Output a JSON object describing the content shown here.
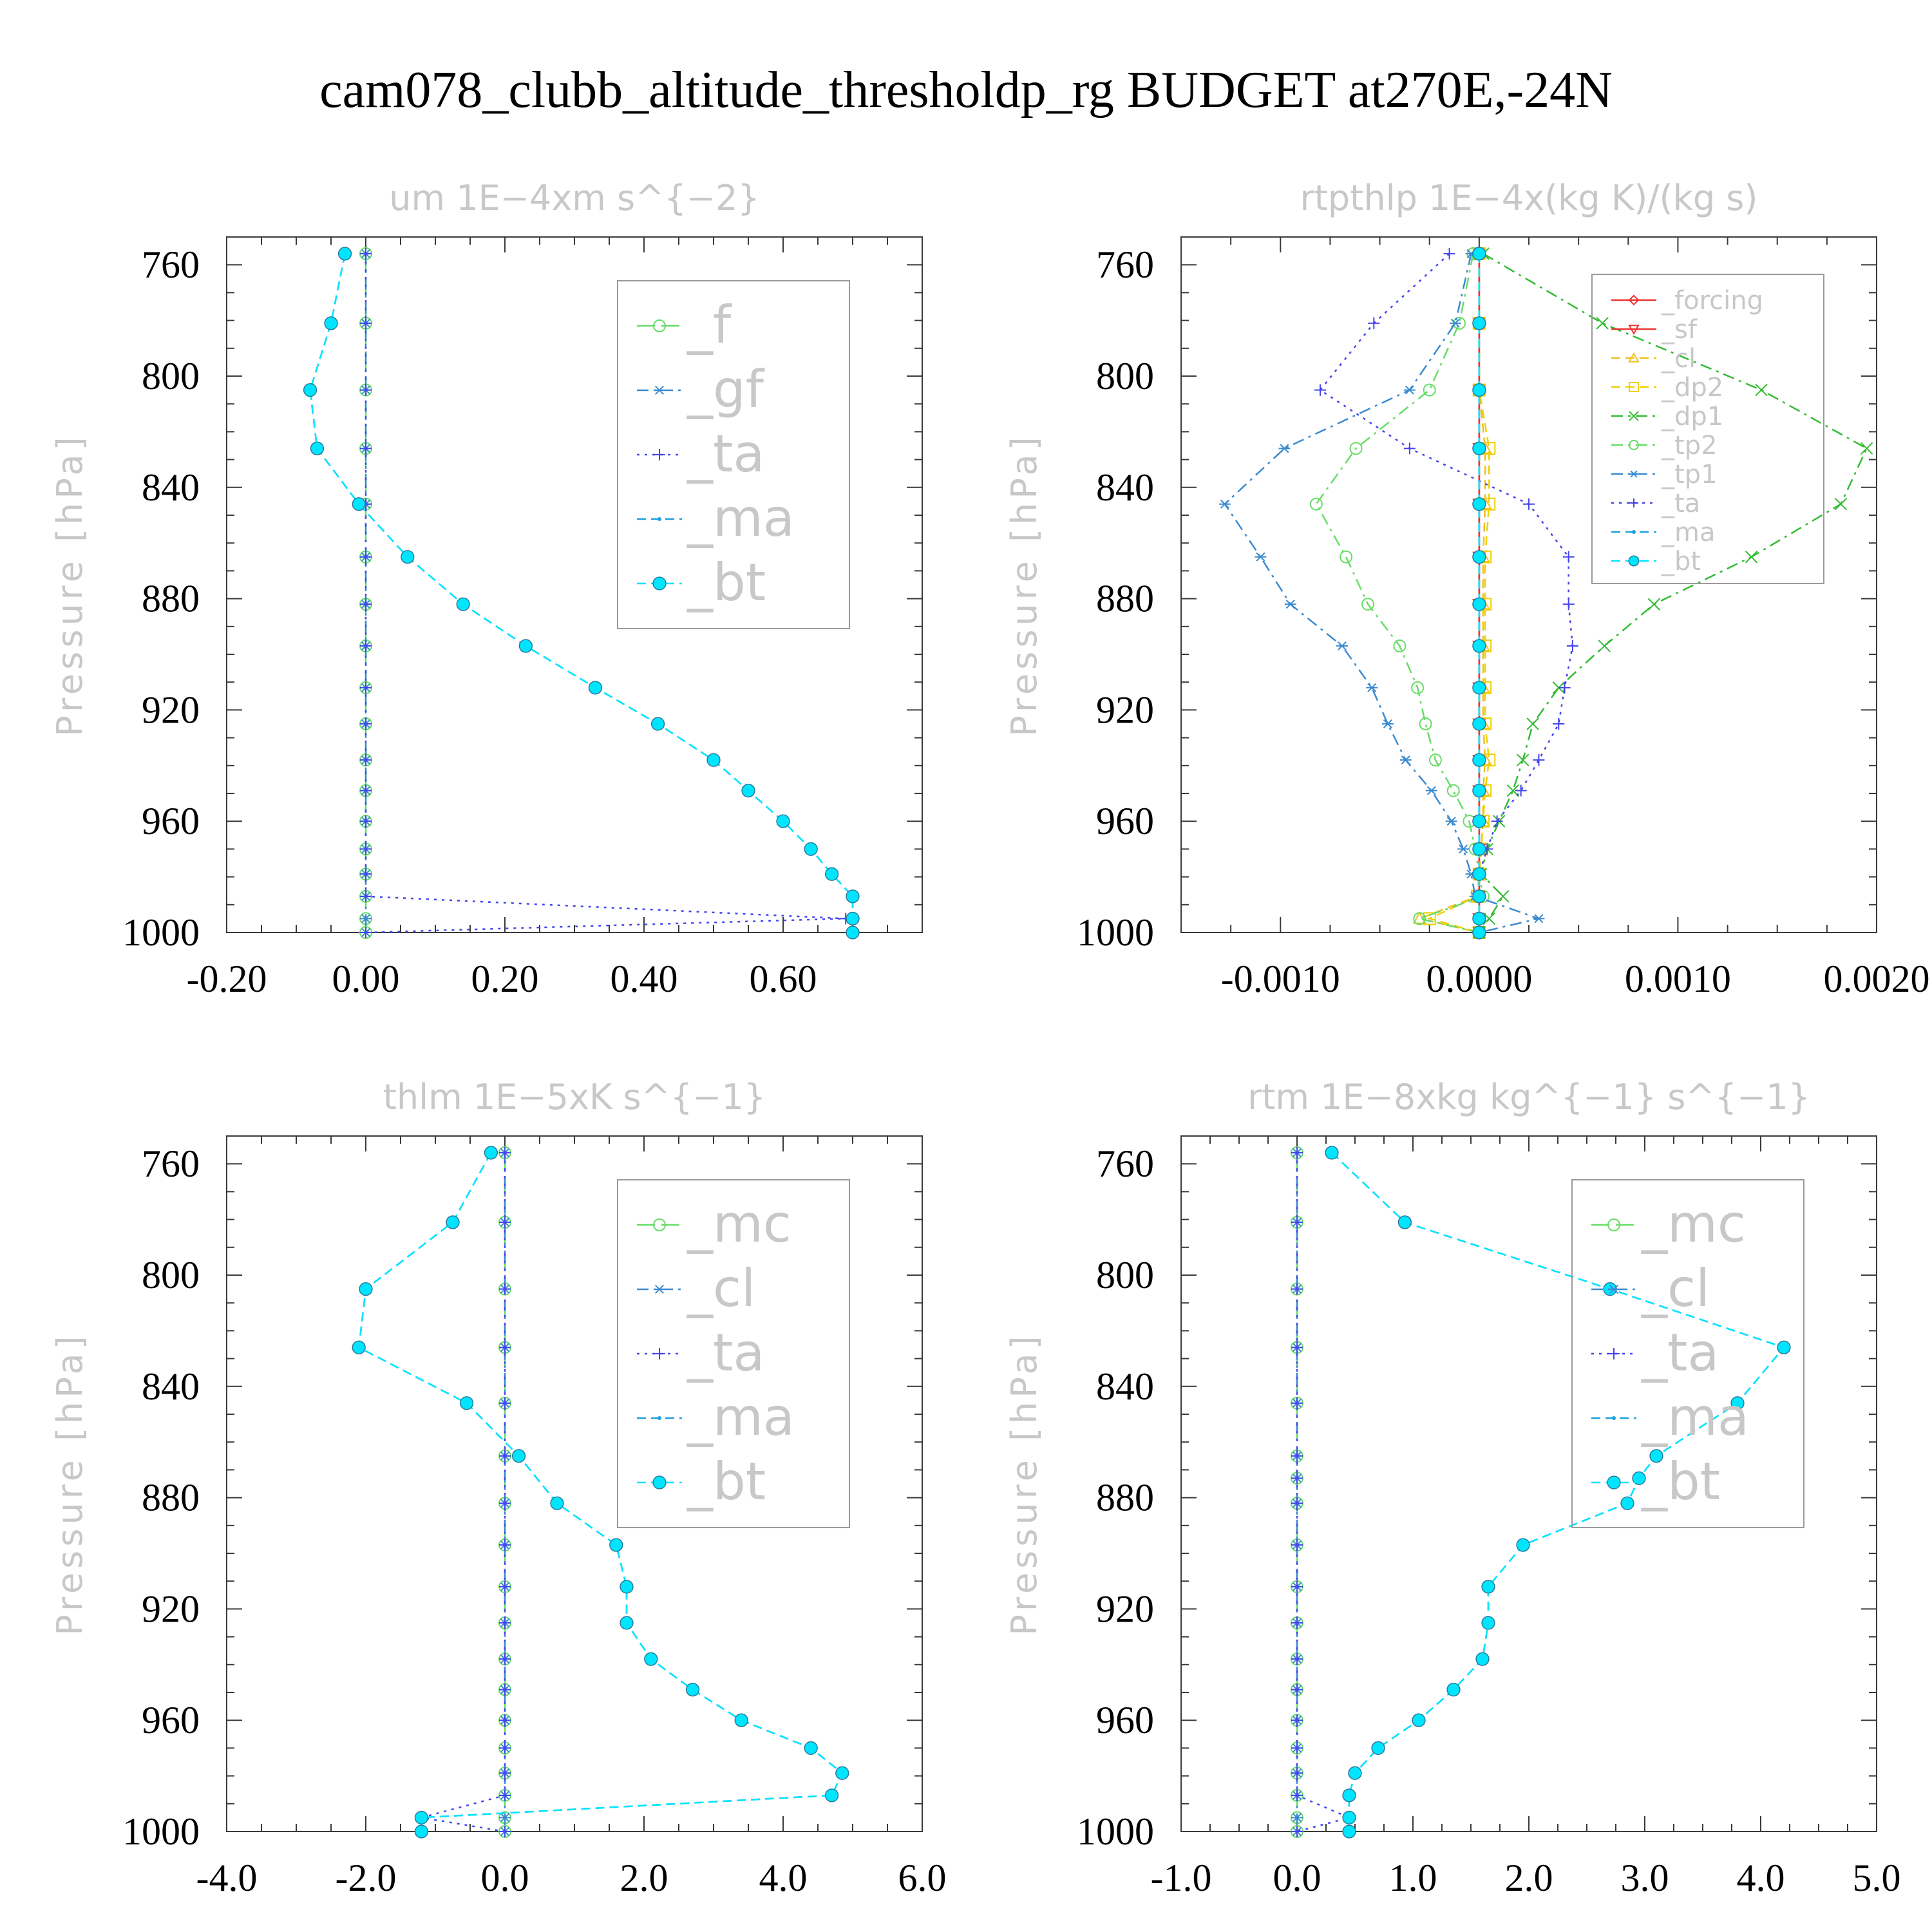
{
  "title": "cam078_clubb_altitude_thresholdp_rg  BUDGET at270E,-24N",
  "colors": {
    "f": "#66dd66",
    "gf": "#3a8ad0",
    "ta": "#4444ee",
    "ma": "#1aa0dd",
    "bt": "#00e5ff",
    "mc": "#66dd66",
    "cl": "#3a8ad0",
    "forcing": "#ee3333",
    "sf": "#ee3333",
    "cl_rt": "#f0c020",
    "dp2": "#f0d000",
    "dp1": "#33bb33",
    "tp2": "#66dd66",
    "tp1": "#3a8ad0",
    "ta_rt": "#4444ee",
    "ma_rt": "#1aa0dd",
    "bt_rt": "#00e5ff"
  },
  "chart_data": [
    {
      "type": "line",
      "title": "um   1E−4xm s^{−2}",
      "ylabel": "Pressure [hPa]",
      "xlim": [
        -0.2,
        0.8
      ],
      "ylim": [
        1000,
        750
      ],
      "xticks": [
        -0.2,
        0.0,
        0.2,
        0.4,
        0.6
      ],
      "xtick_labels": [
        "-0.20",
        "0.00",
        "0.20",
        "0.40",
        "0.60"
      ],
      "yticks": [
        760,
        800,
        840,
        880,
        920,
        960,
        1000
      ],
      "ytick_labels": [
        "760",
        "800",
        "840",
        "880",
        "920",
        "960",
        "1000"
      ],
      "legend_size": "big",
      "legend_pos": "top-right",
      "y": [
        756,
        781,
        805,
        826,
        846,
        865,
        882,
        897,
        912,
        925,
        938,
        949,
        960,
        970,
        979,
        987,
        995,
        1000
      ],
      "series": [
        {
          "name": "_f",
          "color_key": "f",
          "dash": "long",
          "marker": "circle",
          "values": [
            0,
            0,
            0,
            0,
            0,
            0,
            0,
            0,
            0,
            0,
            0,
            0,
            0,
            0,
            0,
            0,
            0,
            0
          ]
        },
        {
          "name": "_gf",
          "color_key": "gf",
          "dash": "dashdot",
          "marker": "star",
          "values": [
            0,
            0,
            0,
            0,
            0,
            0,
            0,
            0,
            0,
            0,
            0,
            0,
            0,
            0,
            0,
            0,
            0,
            0
          ]
        },
        {
          "name": "_ta",
          "color_key": "ta",
          "dash": "dot",
          "marker": "plus",
          "values": [
            0,
            0,
            0,
            0,
            0,
            0,
            0,
            0,
            0,
            0,
            0,
            0,
            0,
            0,
            0,
            0,
            0.69,
            0.0
          ]
        },
        {
          "name": "_ma",
          "color_key": "ma",
          "dash": "dash",
          "marker": "dot",
          "values": [
            -0.03,
            -0.05,
            -0.08,
            -0.07,
            -0.01,
            0.06,
            0.14,
            0.23,
            0.33,
            0.42,
            0.5,
            0.55,
            0.6,
            0.64,
            0.67,
            0.7,
            0.7,
            0.7
          ]
        },
        {
          "name": "_bt",
          "color_key": "bt",
          "dash": "dash",
          "marker": "filled",
          "values": [
            -0.03,
            -0.05,
            -0.08,
            -0.07,
            -0.01,
            0.06,
            0.14,
            0.23,
            0.33,
            0.42,
            0.5,
            0.55,
            0.6,
            0.64,
            0.67,
            0.7,
            0.7,
            0.7
          ]
        }
      ]
    },
    {
      "type": "line",
      "title": "rtpthlp   1E−4x(kg K)/(kg s)",
      "ylabel": "Pressure [hPa]",
      "xlim": [
        -0.0015,
        0.002
      ],
      "ylim": [
        1000,
        750
      ],
      "xticks": [
        -0.001,
        0.0,
        0.001,
        0.002
      ],
      "xtick_labels": [
        "-0.0010",
        "0.0000",
        "0.0010",
        "0.0020"
      ],
      "yticks": [
        760,
        800,
        840,
        880,
        920,
        960,
        1000
      ],
      "ytick_labels": [
        "760",
        "800",
        "840",
        "880",
        "920",
        "960",
        "1000"
      ],
      "legend_size": "small",
      "legend_pos": "top-right",
      "y": [
        756,
        781,
        805,
        826,
        846,
        865,
        882,
        897,
        912,
        925,
        938,
        949,
        960,
        970,
        979,
        987,
        995,
        1000
      ],
      "series": [
        {
          "name": "_forcing",
          "color_key": "forcing",
          "dash": "solid",
          "marker": "diamond",
          "values": [
            0,
            0,
            0,
            0,
            0,
            0,
            0,
            0,
            0,
            0,
            0,
            0,
            0,
            0,
            0,
            0,
            0,
            0
          ]
        },
        {
          "name": "_sf",
          "color_key": "sf",
          "dash": "solid",
          "marker": "triangle-down",
          "values": [
            0,
            0,
            0,
            0,
            0,
            0,
            0,
            0,
            0,
            0,
            0,
            0,
            0,
            0,
            0,
            0,
            0,
            0
          ]
        },
        {
          "name": "_cl",
          "color_key": "cl_rt",
          "dash": "dash",
          "marker": "triangle",
          "values": [
            0,
            0,
            0,
            3e-05,
            3e-05,
            2e-05,
            2e-05,
            2e-05,
            2e-05,
            2e-05,
            3e-05,
            2e-05,
            2e-05,
            1e-05,
            0,
            -1e-05,
            -0.0003,
            0
          ]
        },
        {
          "name": "_dp2",
          "color_key": "dp2",
          "dash": "dash",
          "marker": "square",
          "values": [
            0,
            0,
            0,
            5e-05,
            5e-05,
            3e-05,
            3e-05,
            3e-05,
            3e-05,
            3e-05,
            5e-05,
            3e-05,
            2e-05,
            1e-05,
            0,
            -1e-05,
            -0.00025,
            0
          ]
        },
        {
          "name": "_dp1",
          "color_key": "dp1",
          "dash": "dashdot",
          "marker": "x",
          "values": [
            2e-05,
            0.00062,
            0.00142,
            0.00195,
            0.00182,
            0.00137,
            0.00088,
            0.00063,
            0.0004,
            0.00027,
            0.00022,
            0.00017,
            0.0001,
            4e-05,
            1e-05,
            0.00012,
            5e-05,
            0
          ]
        },
        {
          "name": "_tp2",
          "color_key": "tp2",
          "dash": "dashdot",
          "marker": "circle",
          "values": [
            -3e-05,
            -0.0001,
            -0.00025,
            -0.00062,
            -0.00082,
            -0.00067,
            -0.00056,
            -0.0004,
            -0.00031,
            -0.00027,
            -0.00022,
            -0.00013,
            -5e-05,
            -2e-05,
            0,
            2e-05,
            -0.0003,
            0
          ]
        },
        {
          "name": "_tp1",
          "color_key": "tp1",
          "dash": "dashdot",
          "marker": "star",
          "values": [
            -4e-05,
            -0.00012,
            -0.00035,
            -0.00098,
            -0.00128,
            -0.0011,
            -0.00095,
            -0.00069,
            -0.00054,
            -0.00046,
            -0.00037,
            -0.00024,
            -0.00014,
            -8e-05,
            -4e-05,
            -2e-05,
            0.0003,
            0
          ]
        },
        {
          "name": "_ta",
          "color_key": "ta_rt",
          "dash": "dot",
          "marker": "plus",
          "values": [
            -0.00015,
            -0.00053,
            -0.0008,
            -0.00035,
            0.00025,
            0.00045,
            0.00045,
            0.00047,
            0.00043,
            0.0004,
            0.0003,
            0.00021,
            9e-05,
            4e-05,
            0,
            0,
            0,
            0
          ]
        },
        {
          "name": "_ma",
          "color_key": "ma_rt",
          "dash": "dash",
          "marker": "dot",
          "values": [
            0,
            0,
            0,
            0,
            0,
            0,
            0,
            0,
            0,
            0,
            0,
            0,
            0,
            0,
            0,
            0,
            0,
            0
          ]
        },
        {
          "name": "_bt",
          "color_key": "bt_rt",
          "dash": "dash",
          "marker": "filled",
          "values": [
            0,
            0,
            0,
            0,
            0,
            0,
            0,
            0,
            0,
            0,
            0,
            0,
            0,
            0,
            0,
            0,
            0,
            0
          ]
        }
      ]
    },
    {
      "type": "line",
      "title": "thlm   1E−5xK s^{−1}",
      "ylabel": "Pressure [hPa]",
      "xlim": [
        -4.0,
        6.0
      ],
      "ylim": [
        1000,
        750
      ],
      "xticks": [
        -4.0,
        -2.0,
        0.0,
        2.0,
        4.0,
        6.0
      ],
      "xtick_labels": [
        "-4.0",
        "-2.0",
        "0.0",
        "2.0",
        "4.0",
        "6.0"
      ],
      "yticks": [
        760,
        800,
        840,
        880,
        920,
        960,
        1000
      ],
      "ytick_labels": [
        "760",
        "800",
        "840",
        "880",
        "920",
        "960",
        "1000"
      ],
      "legend_size": "big",
      "legend_pos": "top-right",
      "y": [
        756,
        781,
        805,
        826,
        846,
        865,
        882,
        897,
        912,
        925,
        938,
        949,
        960,
        970,
        979,
        987,
        995,
        1000
      ],
      "series": [
        {
          "name": "_mc",
          "color_key": "mc",
          "dash": "long",
          "marker": "circle",
          "values": [
            0,
            0,
            0,
            0,
            0,
            0,
            0,
            0,
            0,
            0,
            0,
            0,
            0,
            0,
            0,
            0,
            0,
            0
          ]
        },
        {
          "name": "_cl",
          "color_key": "cl",
          "dash": "dashdot",
          "marker": "star",
          "values": [
            0,
            0,
            0,
            0,
            0,
            0,
            0,
            0,
            0,
            0,
            0,
            0,
            0,
            0,
            0,
            0,
            0,
            0
          ]
        },
        {
          "name": "_ta",
          "color_key": "ta",
          "dash": "dot",
          "marker": "plus",
          "values": [
            0,
            0,
            0,
            0,
            0,
            0,
            0,
            0,
            0,
            0,
            0,
            0,
            0,
            0,
            0,
            0,
            -1.2,
            0.0
          ]
        },
        {
          "name": "_ma",
          "color_key": "ma",
          "dash": "dash",
          "marker": "dot",
          "values": [
            -0.2,
            -0.75,
            -2.0,
            -2.1,
            -0.55,
            0.2,
            0.75,
            1.6,
            1.75,
            1.75,
            2.1,
            2.7,
            3.4,
            4.4,
            4.85,
            4.7,
            -1.2,
            -1.2
          ]
        },
        {
          "name": "_bt",
          "color_key": "bt",
          "dash": "dash",
          "marker": "filled",
          "values": [
            -0.2,
            -0.75,
            -2.0,
            -2.1,
            -0.55,
            0.2,
            0.75,
            1.6,
            1.75,
            1.75,
            2.1,
            2.7,
            3.4,
            4.4,
            4.85,
            4.7,
            -1.2,
            -1.2
          ]
        }
      ]
    },
    {
      "type": "line",
      "title": "rtm   1E−8xkg kg^{−1} s^{−1}",
      "ylabel": "Pressure [hPa]",
      "xlim": [
        -1.0,
        5.0
      ],
      "ylim": [
        1000,
        750
      ],
      "xticks": [
        -1.0,
        0.0,
        1.0,
        2.0,
        3.0,
        4.0,
        5.0
      ],
      "xtick_labels": [
        "-1.0",
        "0.0",
        "1.0",
        "2.0",
        "3.0",
        "4.0",
        "5.0"
      ],
      "yticks": [
        760,
        800,
        840,
        880,
        920,
        960,
        1000
      ],
      "ytick_labels": [
        "760",
        "800",
        "840",
        "880",
        "920",
        "960",
        "1000"
      ],
      "legend_size": "big",
      "legend_pos": "top-right",
      "y": [
        756,
        781,
        805,
        826,
        846,
        865,
        873,
        882,
        897,
        912,
        925,
        938,
        949,
        960,
        970,
        979,
        987,
        995,
        1000
      ],
      "series": [
        {
          "name": "_mc",
          "color_key": "mc",
          "dash": "long",
          "marker": "circle",
          "values": [
            0,
            0,
            0,
            0,
            0,
            0,
            0,
            0,
            0,
            0,
            0,
            0,
            0,
            0,
            0,
            0,
            0,
            0,
            0
          ]
        },
        {
          "name": "_cl",
          "color_key": "cl",
          "dash": "dashdot",
          "marker": "star",
          "values": [
            0,
            0,
            0,
            0,
            0,
            0,
            0,
            0,
            0,
            0,
            0,
            0,
            0,
            0,
            0,
            0,
            0,
            0,
            0
          ]
        },
        {
          "name": "_ta",
          "color_key": "ta",
          "dash": "dot",
          "marker": "plus",
          "values": [
            0,
            0,
            0,
            0,
            0,
            0,
            0,
            0,
            0,
            0,
            0,
            0,
            0,
            0,
            0,
            0,
            0,
            0.45,
            0.0
          ]
        },
        {
          "name": "_ma",
          "color_key": "ma",
          "dash": "dash",
          "marker": "dot",
          "values": [
            0.3,
            0.93,
            2.7,
            4.2,
            3.8,
            3.1,
            2.95,
            2.85,
            1.95,
            1.65,
            1.65,
            1.6,
            1.35,
            1.05,
            0.7,
            0.5,
            0.45,
            0.45,
            0.45
          ]
        },
        {
          "name": "_bt",
          "color_key": "bt",
          "dash": "dash",
          "marker": "filled",
          "values": [
            0.3,
            0.93,
            2.7,
            4.2,
            3.8,
            3.1,
            2.95,
            2.85,
            1.95,
            1.65,
            1.65,
            1.6,
            1.35,
            1.05,
            0.7,
            0.5,
            0.45,
            0.45,
            0.45
          ]
        }
      ]
    }
  ]
}
